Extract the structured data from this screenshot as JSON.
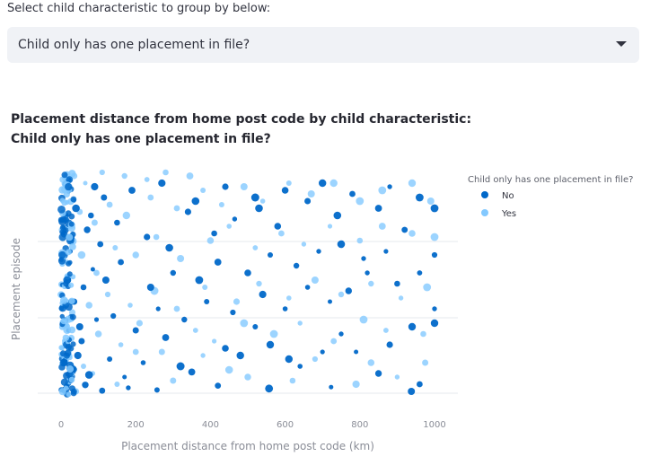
{
  "selector": {
    "label": "Select child characteristic to group by below:",
    "value": "Child only has one placement in file?"
  },
  "chart_title": {
    "line1": "Placement distance from home post code by child characteristic:",
    "line2": "Child only has one placement in file?"
  },
  "chart_data": {
    "type": "scatter",
    "title": "Placement distance from home post code by child characteristic: Child only has one placement in file?",
    "xlabel": "Placement distance from home post code (km)",
    "ylabel": "Placement episode",
    "xlim": [
      0,
      1000
    ],
    "xticks": [
      0,
      200,
      400,
      600,
      800,
      1000
    ],
    "ylim": [
      0,
      3
    ],
    "grid": true,
    "legend": {
      "title": "Child only has one placement in file?",
      "position": "top-right"
    },
    "colors": {
      "No": "#0068c9",
      "Yes": "#83c9ff"
    },
    "series": [
      {
        "name": "No",
        "points": [
          [
            938,
            0.05
          ],
          [
            257,
            0.07
          ],
          [
            557,
            0.09
          ],
          [
            723,
            0.11
          ],
          [
            15,
            0.12
          ],
          [
            65,
            0.14
          ],
          [
            110,
            0.06
          ],
          [
            180,
            0.1
          ],
          [
            320,
            0.4
          ],
          [
            420,
            0.13
          ],
          [
            610,
            0.5
          ],
          [
            850,
            0.3
          ],
          [
            960,
            0.15
          ],
          [
            30,
            0.35
          ],
          [
            45,
            0.55
          ],
          [
            75,
            0.28
          ],
          [
            130,
            0.5
          ],
          [
            170,
            0.25
          ],
          [
            220,
            0.45
          ],
          [
            280,
            0.8
          ],
          [
            350,
            0.32
          ],
          [
            440,
            0.65
          ],
          [
            480,
            0.55
          ],
          [
            520,
            0.95
          ],
          [
            560,
            0.7
          ],
          [
            640,
            0.4
          ],
          [
            700,
            0.6
          ],
          [
            750,
            0.85
          ],
          [
            790,
            0.6
          ],
          [
            880,
            0.7
          ],
          [
            940,
            0.95
          ],
          [
            1000,
            1.0
          ],
          [
            20,
            0.9
          ],
          [
            55,
            0.75
          ],
          [
            95,
            1.05
          ],
          [
            140,
            1.1
          ],
          [
            200,
            0.9
          ],
          [
            260,
            1.2
          ],
          [
            330,
            1.05
          ],
          [
            390,
            1.3
          ],
          [
            460,
            1.15
          ],
          [
            540,
            1.4
          ],
          [
            600,
            1.2
          ],
          [
            660,
            1.5
          ],
          [
            720,
            1.3
          ],
          [
            770,
            1.45
          ],
          [
            820,
            1.7
          ],
          [
            900,
            1.55
          ],
          [
            1000,
            1.2
          ],
          [
            35,
            1.3
          ],
          [
            60,
            1.5
          ],
          [
            85,
            1.75
          ],
          [
            120,
            1.6
          ],
          [
            160,
            1.85
          ],
          [
            240,
            1.5
          ],
          [
            300,
            1.7
          ],
          [
            370,
            1.6
          ],
          [
            420,
            1.85
          ],
          [
            500,
            1.7
          ],
          [
            560,
            1.95
          ],
          [
            630,
            1.8
          ],
          [
            690,
            2.0
          ],
          [
            750,
            2.1
          ],
          [
            810,
            1.9
          ],
          [
            870,
            2.0
          ],
          [
            960,
            1.7
          ],
          [
            1000,
            1.95
          ],
          [
            25,
            2.0
          ],
          [
            70,
            2.3
          ],
          [
            105,
            2.1
          ],
          [
            150,
            2.4
          ],
          [
            230,
            2.2
          ],
          [
            290,
            2.05
          ],
          [
            340,
            2.55
          ],
          [
            410,
            2.25
          ],
          [
            465,
            2.45
          ],
          [
            530,
            2.6
          ],
          [
            580,
            2.35
          ],
          [
            660,
            2.7
          ],
          [
            740,
            2.5
          ],
          [
            850,
            2.6
          ],
          [
            920,
            2.3
          ],
          [
            1000,
            2.6
          ],
          [
            40,
            2.6
          ],
          [
            80,
            2.5
          ],
          [
            115,
            2.75
          ],
          [
            190,
            2.85
          ],
          [
            270,
            2.95
          ],
          [
            360,
            2.7
          ],
          [
            440,
            2.9
          ],
          [
            520,
            2.75
          ],
          [
            600,
            2.85
          ],
          [
            700,
            2.95
          ],
          [
            780,
            2.8
          ],
          [
            880,
            2.9
          ],
          [
            960,
            2.75
          ],
          [
            10,
            0.45
          ],
          [
            18,
            1.6
          ],
          [
            28,
            2.15
          ],
          [
            50,
            0.95
          ],
          [
            90,
            2.9
          ],
          [
            12,
            2.5
          ]
        ]
      },
      {
        "name": "Yes",
        "points": [
          [
            975,
            0.45
          ],
          [
            40,
            0.05
          ],
          [
            85,
            0.3
          ],
          [
            150,
            0.15
          ],
          [
            200,
            0.6
          ],
          [
            300,
            0.2
          ],
          [
            380,
            0.55
          ],
          [
            450,
            0.35
          ],
          [
            500,
            0.25
          ],
          [
            620,
            0.2
          ],
          [
            680,
            0.5
          ],
          [
            790,
            0.15
          ],
          [
            830,
            0.45
          ],
          [
            900,
            0.25
          ],
          [
            20,
            0.6
          ],
          [
            60,
            0.4
          ],
          [
            100,
            0.85
          ],
          [
            160,
            0.7
          ],
          [
            210,
            1.0
          ],
          [
            270,
            0.6
          ],
          [
            360,
            0.9
          ],
          [
            410,
            0.75
          ],
          [
            490,
            1.0
          ],
          [
            570,
            0.85
          ],
          [
            640,
            1.0
          ],
          [
            730,
            0.75
          ],
          [
            810,
            1.05
          ],
          [
            870,
            0.9
          ],
          [
            970,
            0.85
          ],
          [
            30,
            1.15
          ],
          [
            75,
            1.25
          ],
          [
            125,
            1.4
          ],
          [
            185,
            1.25
          ],
          [
            250,
            1.45
          ],
          [
            310,
            1.2
          ],
          [
            385,
            1.5
          ],
          [
            470,
            1.3
          ],
          [
            530,
            1.55
          ],
          [
            610,
            1.35
          ],
          [
            680,
            1.6
          ],
          [
            750,
            1.4
          ],
          [
            830,
            1.55
          ],
          [
            910,
            1.35
          ],
          [
            980,
            1.5
          ],
          [
            15,
            1.85
          ],
          [
            55,
            1.95
          ],
          [
            95,
            1.7
          ],
          [
            145,
            2.05
          ],
          [
            200,
            1.95
          ],
          [
            255,
            2.2
          ],
          [
            320,
            1.9
          ],
          [
            400,
            2.15
          ],
          [
            450,
            2.35
          ],
          [
            520,
            2.05
          ],
          [
            590,
            2.25
          ],
          [
            650,
            2.1
          ],
          [
            720,
            2.35
          ],
          [
            800,
            2.15
          ],
          [
            860,
            2.35
          ],
          [
            940,
            2.25
          ],
          [
            1000,
            2.2
          ],
          [
            20,
            2.35
          ],
          [
            50,
            2.55
          ],
          [
            90,
            2.4
          ],
          [
            130,
            2.65
          ],
          [
            175,
            2.5
          ],
          [
            240,
            2.75
          ],
          [
            310,
            2.6
          ],
          [
            380,
            2.85
          ],
          [
            430,
            2.65
          ],
          [
            490,
            2.9
          ],
          [
            540,
            2.7
          ],
          [
            610,
            2.95
          ],
          [
            670,
            2.8
          ],
          [
            730,
            2.95
          ],
          [
            800,
            2.7
          ],
          [
            860,
            2.85
          ],
          [
            940,
            2.95
          ],
          [
            990,
            2.7
          ],
          [
            5,
            3.0
          ],
          [
            35,
            3.05
          ],
          [
            65,
            2.95
          ],
          [
            110,
            3.1
          ],
          [
            170,
            3.05
          ],
          [
            230,
            3.0
          ],
          [
            280,
            3.1
          ],
          [
            345,
            3.05
          ]
        ]
      }
    ]
  }
}
